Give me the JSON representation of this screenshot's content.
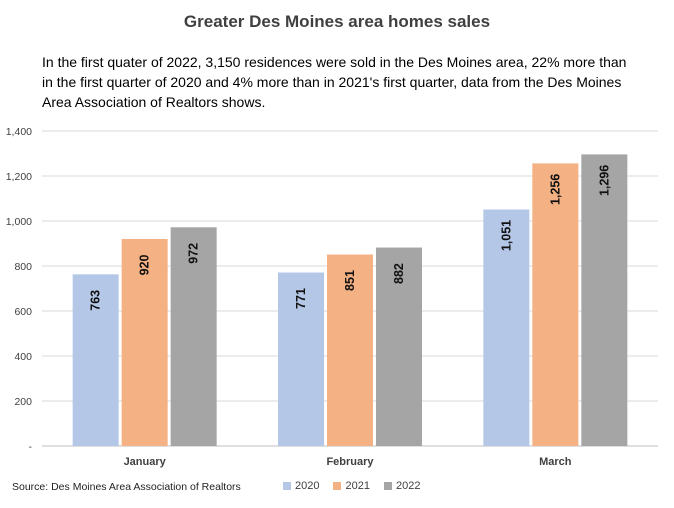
{
  "chart_data": {
    "type": "bar",
    "title": "Greater Des Moines area homes sales",
    "description": "In the first quater of 2022, 3,150 residences were sold in the Des Moines area, 22% more than\n in the first quarter of 2020 and 4% more than in 2021's first quarter, data from the Des Moines\nArea Association of Realtors shows.",
    "source": "Source: Des Moines Area Association of Realtors",
    "categories": [
      "January",
      "February",
      "March"
    ],
    "series": [
      {
        "name": "2020",
        "values": [
          763,
          771,
          1051
        ],
        "labels": [
          "763",
          "771",
          "1,051"
        ],
        "color": "#b4c7e7"
      },
      {
        "name": "2021",
        "values": [
          920,
          851,
          1256
        ],
        "labels": [
          "920",
          "851",
          "1,256"
        ],
        "color": "#f4b183"
      },
      {
        "name": "2022",
        "values": [
          972,
          882,
          1296
        ],
        "labels": [
          "972",
          "882",
          "1,296"
        ],
        "color": "#a5a5a5"
      }
    ],
    "ylim": [
      0,
      1400
    ],
    "yticks": [
      0,
      200,
      400,
      600,
      800,
      1000,
      1200,
      1400
    ],
    "ytick_labels": [
      "-",
      "200",
      "400",
      "600",
      "800",
      "1,000",
      "1,200",
      "1,400"
    ],
    "grid": true,
    "legend_position": "bottom"
  }
}
